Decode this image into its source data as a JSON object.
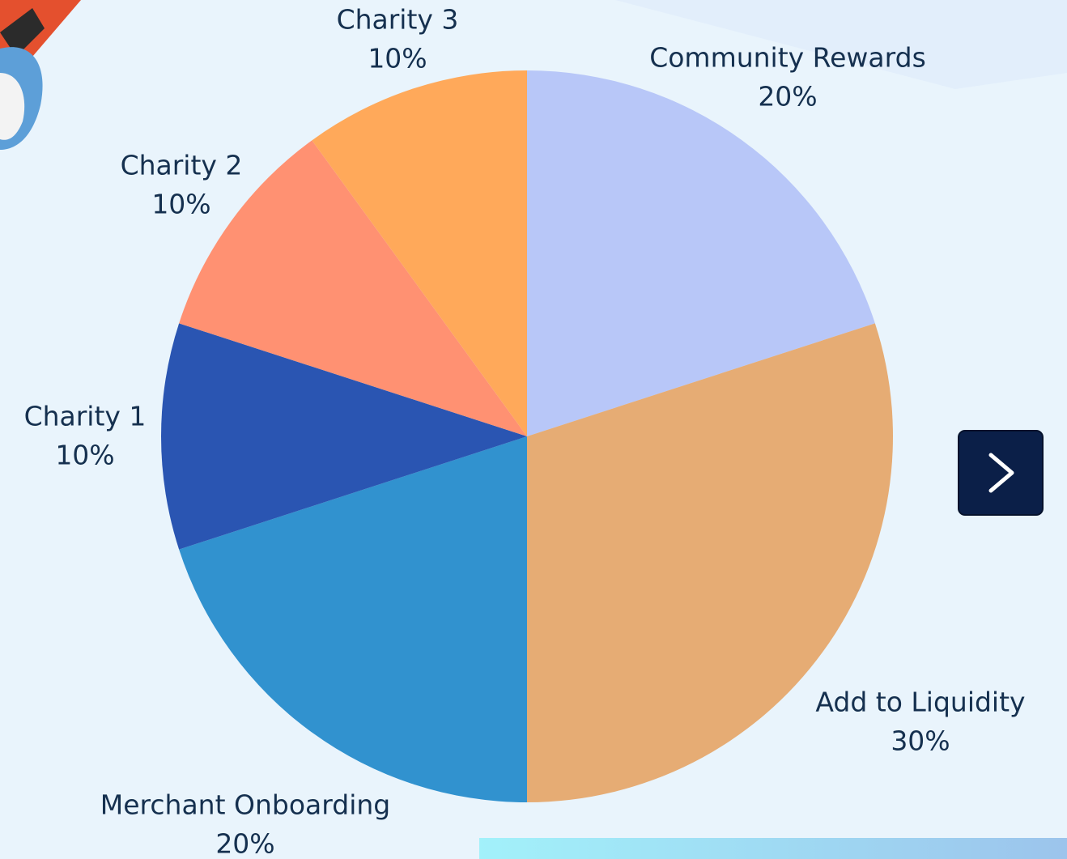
{
  "chart_data": {
    "type": "pie",
    "categories": [
      "Community Rewards",
      "Add to Liquidity",
      "Merchant Onboarding",
      "Charity 1",
      "Charity 2",
      "Charity 3"
    ],
    "values": [
      20,
      30,
      20,
      10,
      10,
      10
    ],
    "value_labels": [
      "20%",
      "30%",
      "20%",
      "10%",
      "10%",
      "10%"
    ],
    "colors": [
      "#b8c7f8",
      "#e6ac74",
      "#3192cf",
      "#2a55b2",
      "#ff9172",
      "#ffa95a"
    ]
  }
}
